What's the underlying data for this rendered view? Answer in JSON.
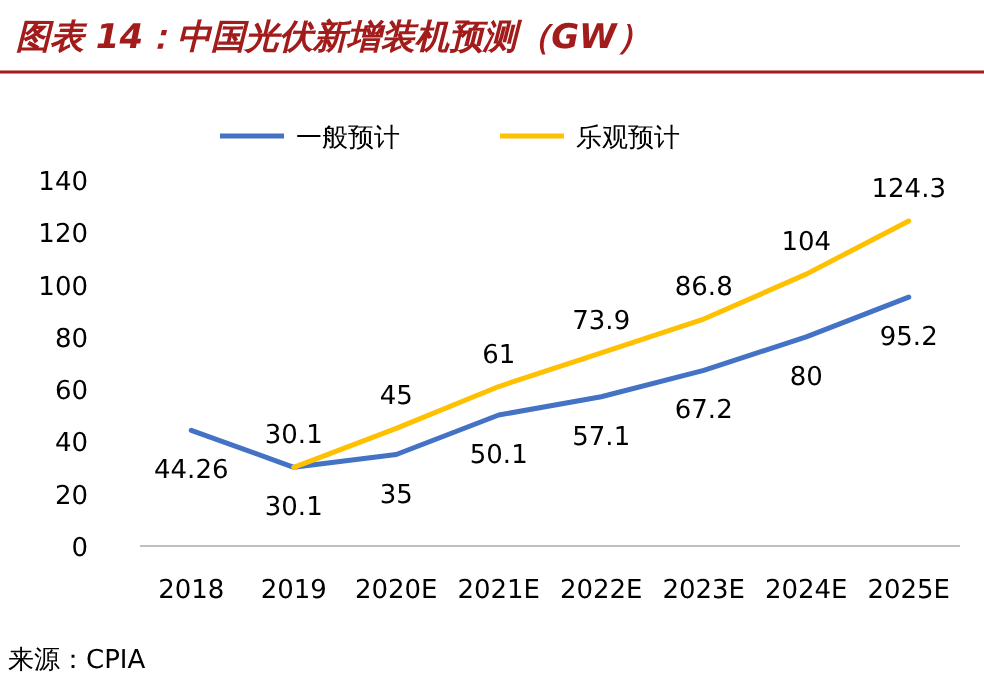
{
  "chart_data": {
    "type": "line",
    "title": "图表 14：中国光伏新增装机预测（GW）",
    "categories": [
      "2018",
      "2019",
      "2020E",
      "2021E",
      "2022E",
      "2023E",
      "2024E",
      "2025E"
    ],
    "series": [
      {
        "name": "一般预计",
        "color": "#4472c4",
        "values": [
          44.26,
          30.1,
          35,
          50.1,
          57.1,
          67.2,
          80,
          95.2
        ]
      },
      {
        "name": "乐观预计",
        "color": "#ffc000",
        "values": [
          null,
          30.1,
          45,
          61,
          73.9,
          86.8,
          104,
          124.3
        ]
      }
    ],
    "ylim": [
      0,
      140
    ],
    "yticks": [
      0,
      20,
      40,
      60,
      80,
      100,
      120,
      140
    ],
    "data_labels": true,
    "legend": "top",
    "grid": false,
    "marker": "none",
    "annotations": [
      "来源：CPIA"
    ]
  }
}
